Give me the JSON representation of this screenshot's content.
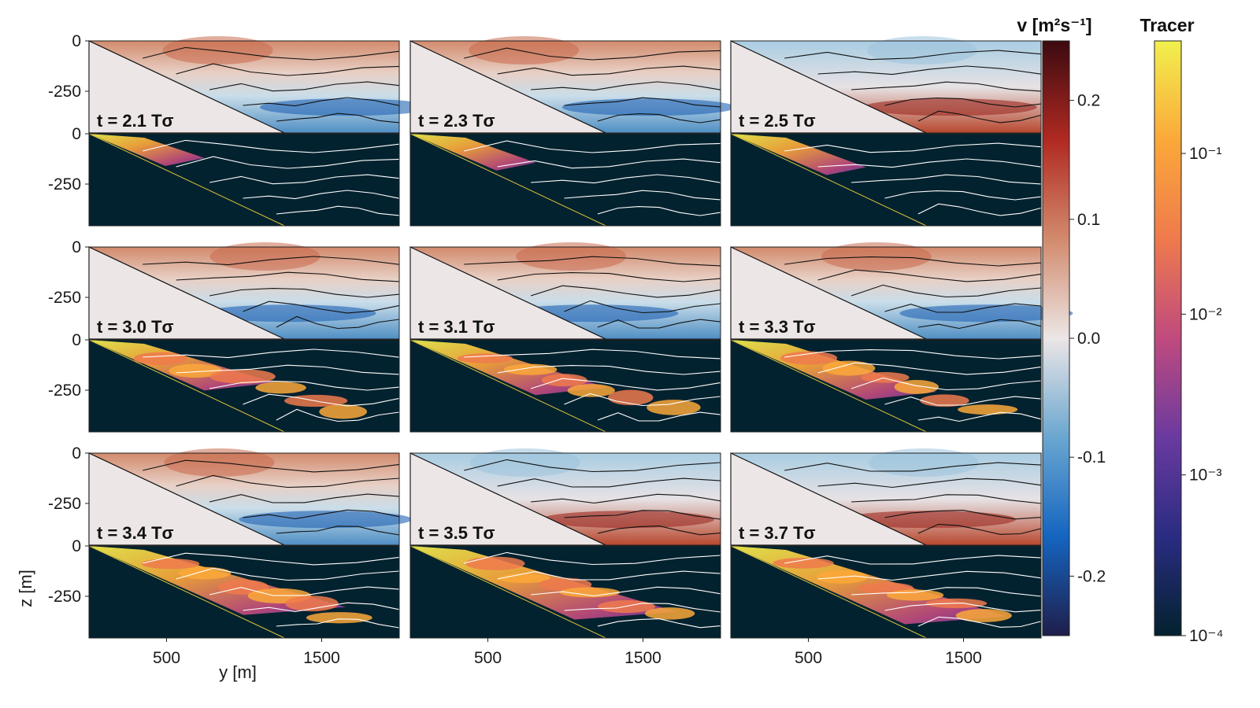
{
  "chart_data": {
    "type": "heatmap",
    "x_axis": {
      "label": "y [m]",
      "ticks": [
        500,
        1500
      ],
      "range": [
        0,
        2000
      ]
    },
    "y_axis": {
      "label": "z [m]",
      "ticks": [
        "0",
        "-250"
      ],
      "range": [
        -500,
        0
      ]
    },
    "panels": [
      {
        "label": "t = 2.1 Tσ"
      },
      {
        "label": "t = 2.3 Tσ"
      },
      {
        "label": "t = 2.5 Tσ"
      },
      {
        "label": "t = 3.0 Tσ"
      },
      {
        "label": "t = 3.1 Tσ"
      },
      {
        "label": "t = 3.3 Tσ"
      },
      {
        "label": "t = 3.4 Tσ"
      },
      {
        "label": "t = 3.5 Tσ"
      },
      {
        "label": "t = 3.7 Tσ"
      }
    ],
    "colorbar_v": {
      "title": "v [m²s⁻¹]",
      "range": [
        -0.25,
        0.25
      ],
      "ticks": [
        "0.2",
        "0.1",
        "0.0",
        "-0.1",
        "-0.2"
      ],
      "tick_values": [
        0.2,
        0.1,
        0.0,
        -0.1,
        -0.2
      ],
      "colors": [
        "#1f1e4a",
        "#1565c0",
        "#6aa6d0",
        "#ece6e6",
        "#d28a6c",
        "#b02a22",
        "#3c0a10"
      ]
    },
    "colorbar_tracer": {
      "title": "Tracer",
      "scale": "log",
      "range_exp": [
        -4,
        -0.3
      ],
      "ticks": [
        "10⁻¹",
        "10⁻²",
        "10⁻³",
        "10⁻⁴"
      ],
      "tick_exps": [
        -1,
        -2,
        -3,
        -4
      ],
      "colors": [
        "#03222f",
        "#2a2c82",
        "#6a3aa0",
        "#c04a7e",
        "#ef7a4c",
        "#fba83a",
        "#f1f04e"
      ]
    }
  }
}
